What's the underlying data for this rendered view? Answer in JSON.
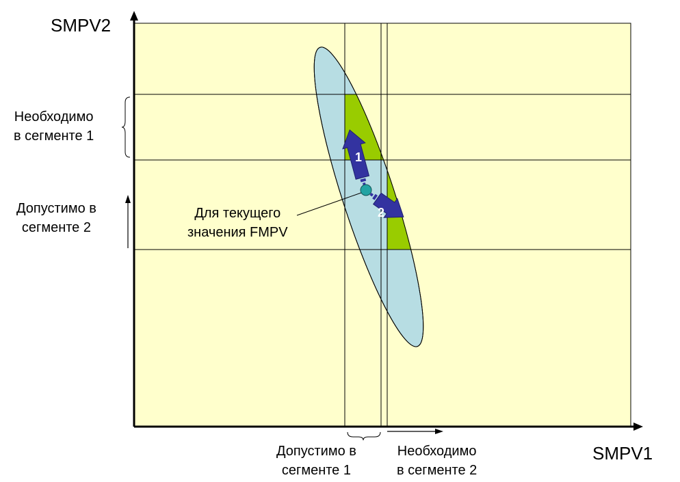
{
  "axes": {
    "x_label": "SMPV1",
    "y_label": "SMPV2"
  },
  "labels": {
    "required_seg1_y": [
      "Необходимо",
      "в сегменте 1"
    ],
    "allowed_seg2_y": [
      "Допустимо в",
      "сегменте 2"
    ],
    "allowed_seg1_x": [
      "Допустимо в",
      "сегменте 1"
    ],
    "required_seg2_x": [
      "Необходимо",
      "в сегменте 2"
    ],
    "current_point": [
      "Для текущего",
      "значения FMPV"
    ]
  },
  "arrows": {
    "arrow_1": "1",
    "arrow_2": "2"
  },
  "colors": {
    "background": "#ffffcc",
    "ellipse": "#b7dde3",
    "region": "#99cc00",
    "arrow": "#3333a0",
    "point": "#22a3a3"
  }
}
